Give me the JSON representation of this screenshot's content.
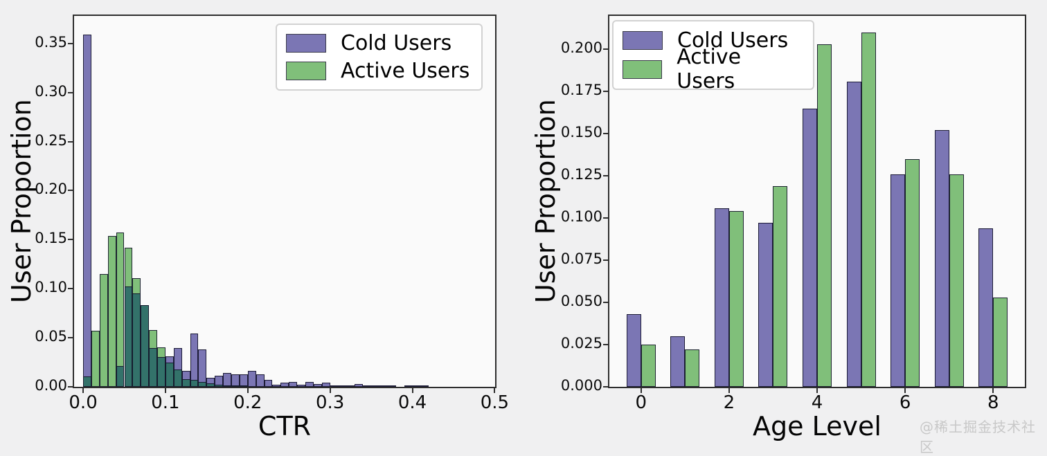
{
  "watermark": "@稀土掘金技术社区",
  "colors": {
    "cold": "#7b76b4",
    "active": "#80bf7a",
    "overlap": "#33726a",
    "edge": "#1f1f33",
    "figure_bg": "#f0f0f1",
    "plot_bg": "#fafafa"
  },
  "legend": {
    "items": [
      {
        "label": "Cold Users",
        "color_key": "cold"
      },
      {
        "label": "Active Users",
        "color_key": "active"
      }
    ]
  },
  "chart_data": [
    {
      "type": "bar",
      "subtype": "overlaid-histogram",
      "xlabel": "CTR",
      "ylabel": "User Proportion",
      "legend_position": "top-right",
      "grid": false,
      "bin_start": 0.0,
      "bin_width": 0.01,
      "xlim": [
        -0.011,
        0.5005
      ],
      "ylim": [
        0,
        0.378
      ],
      "xticks": [
        0.0,
        0.1,
        0.2,
        0.3,
        0.4,
        0.5
      ],
      "xtick_labels": [
        "0.0",
        "0.1",
        "0.2",
        "0.3",
        "0.4",
        "0.5"
      ],
      "yticks": [
        0.0,
        0.05,
        0.1,
        0.15,
        0.2,
        0.25,
        0.3,
        0.35
      ],
      "ytick_labels": [
        "0.00",
        "0.05",
        "0.10",
        "0.15",
        "0.20",
        "0.25",
        "0.30",
        "0.35"
      ],
      "series": [
        {
          "name": "Cold Users",
          "values": [
            0.359,
            0,
            0,
            0,
            0.021,
            0.102,
            0.0955,
            0.0835,
            0.0395,
            0.0305,
            0.031,
            0.0395,
            0.0165,
            0.054,
            0.038,
            0.009,
            0.011,
            0.014,
            0.0125,
            0.013,
            0.016,
            0.013,
            0.007,
            0.002,
            0.004,
            0.005,
            0.002,
            0.005,
            0.0025,
            0.0045,
            0.0015,
            0.0015,
            0.001,
            0.003,
            0.0005,
            0.001,
            0.001,
            0.0005,
            0,
            0.0005,
            0.0008,
            0.0005
          ]
        },
        {
          "name": "Active Users",
          "values": [
            0.0105,
            0.057,
            0.115,
            0.154,
            0.157,
            0.142,
            0.111,
            0.0835,
            0.0575,
            0.04,
            0.0245,
            0.0175,
            0.008,
            0.007,
            0.005,
            0.0035,
            0.002,
            0.001,
            0.0005,
            0.0005,
            0,
            0,
            0,
            0,
            0,
            0,
            0,
            0,
            0,
            0,
            0,
            0,
            0,
            0,
            0,
            0,
            0,
            0,
            0,
            0,
            0,
            0
          ]
        }
      ]
    },
    {
      "type": "bar",
      "subtype": "grouped",
      "xlabel": "Age Level",
      "ylabel": "User Proportion",
      "legend_position": "top-left",
      "grid": false,
      "categories": [
        0,
        1,
        2,
        3,
        4,
        5,
        6,
        7,
        8
      ],
      "bar_width": 0.33,
      "xlim": [
        -0.72,
        8.72
      ],
      "ylim": [
        0,
        0.2198
      ],
      "xticks": [
        0,
        2,
        4,
        6,
        8
      ],
      "xtick_labels": [
        "0",
        "2",
        "4",
        "6",
        "8"
      ],
      "yticks": [
        0.0,
        0.025,
        0.05,
        0.075,
        0.1,
        0.125,
        0.15,
        0.175,
        0.2
      ],
      "ytick_labels": [
        "0.000",
        "0.025",
        "0.050",
        "0.075",
        "0.100",
        "0.125",
        "0.150",
        "0.175",
        "0.200"
      ],
      "series": [
        {
          "name": "Cold Users",
          "values": [
            0.043,
            0.03,
            0.106,
            0.097,
            0.165,
            0.181,
            0.126,
            0.152,
            0.094
          ]
        },
        {
          "name": "Active Users",
          "values": [
            0.025,
            0.022,
            0.104,
            0.119,
            0.203,
            0.21,
            0.135,
            0.126,
            0.053
          ]
        }
      ]
    }
  ]
}
